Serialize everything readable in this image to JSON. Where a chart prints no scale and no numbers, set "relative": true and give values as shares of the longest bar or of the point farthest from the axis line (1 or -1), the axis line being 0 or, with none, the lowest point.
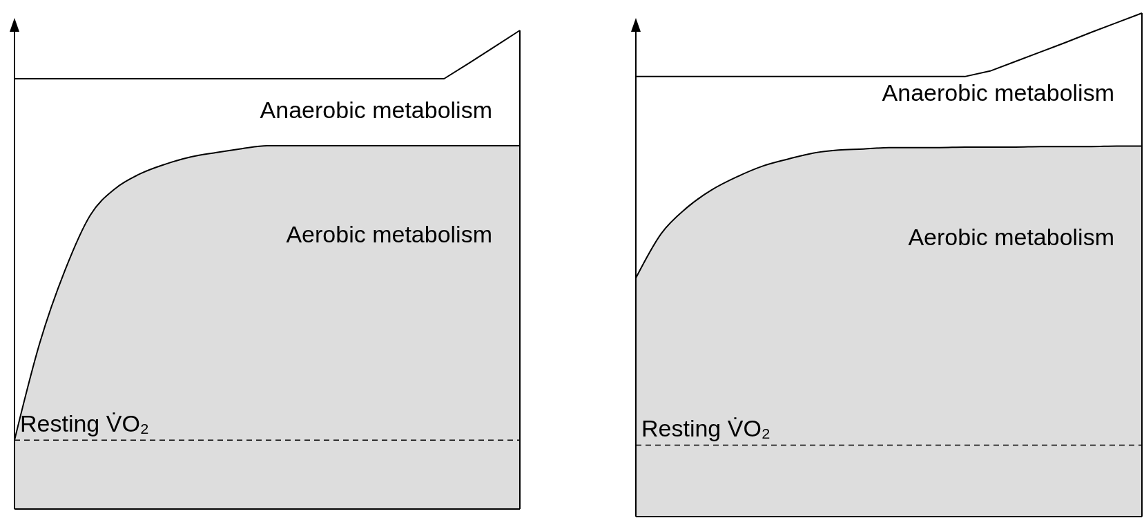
{
  "chart_data": [
    {
      "type": "area",
      "relative": true,
      "categories": [
        null,
        null,
        null,
        null,
        null,
        null,
        null,
        null,
        null,
        null,
        null,
        null,
        null,
        null,
        null,
        null,
        null,
        null,
        null,
        null,
        null
      ],
      "tick_labels": false,
      "series": [
        {
          "type": "area",
          "color": "#dddddd",
          "values": [
            0.144,
            0.347,
            0.499,
            0.614,
            0.67,
            0.701,
            0.721,
            0.736,
            0.745,
            0.753,
            0.759,
            0.759,
            0.759,
            0.759,
            0.759,
            0.759,
            0.759,
            0.759,
            0.759,
            0.759,
            0.759
          ]
        },
        {
          "type": "line",
          "color": "#000000",
          "values": [
            0.899,
            0.899,
            0.899,
            0.899,
            0.899,
            0.899,
            0.899,
            0.899,
            0.899,
            0.899,
            0.899,
            0.899,
            0.899,
            0.899,
            0.899,
            0.899,
            0.899,
            0.899,
            0.932,
            0.966,
            1.0
          ]
        }
      ],
      "ref_lines": [
        {
          "axis": "y",
          "value": 0.144,
          "label": "Resting V̇O₂",
          "line_style": "dashed"
        }
      ],
      "annotations": [
        "Anaerobic metabolism",
        "Aerobic metabolism"
      ]
    },
    {
      "type": "area",
      "relative": true,
      "categories": [
        null,
        null,
        null,
        null,
        null,
        null,
        null,
        null,
        null,
        null,
        null,
        null,
        null,
        null,
        null,
        null,
        null,
        null,
        null,
        null,
        null
      ],
      "tick_labels": false,
      "series": [
        {
          "type": "area",
          "color": "#dddddd",
          "values": [
            0.474,
            0.562,
            0.613,
            0.649,
            0.675,
            0.696,
            0.71,
            0.722,
            0.728,
            0.73,
            0.733,
            0.733,
            0.733,
            0.734,
            0.734,
            0.734,
            0.735,
            0.735,
            0.735,
            0.736,
            0.736
          ]
        },
        {
          "type": "line",
          "color": "#000000",
          "values": [
            0.874,
            0.874,
            0.874,
            0.874,
            0.874,
            0.874,
            0.874,
            0.874,
            0.874,
            0.874,
            0.874,
            0.874,
            0.874,
            0.874,
            0.885,
            0.904,
            0.923,
            0.942,
            0.962,
            0.981,
            1.0
          ]
        }
      ],
      "ref_lines": [
        {
          "axis": "y",
          "value": 0.142,
          "label": "Resting V̇O₂",
          "line_style": "dashed"
        }
      ],
      "annotations": [
        "Anaerobic metabolism",
        "Aerobic metabolism"
      ]
    }
  ]
}
